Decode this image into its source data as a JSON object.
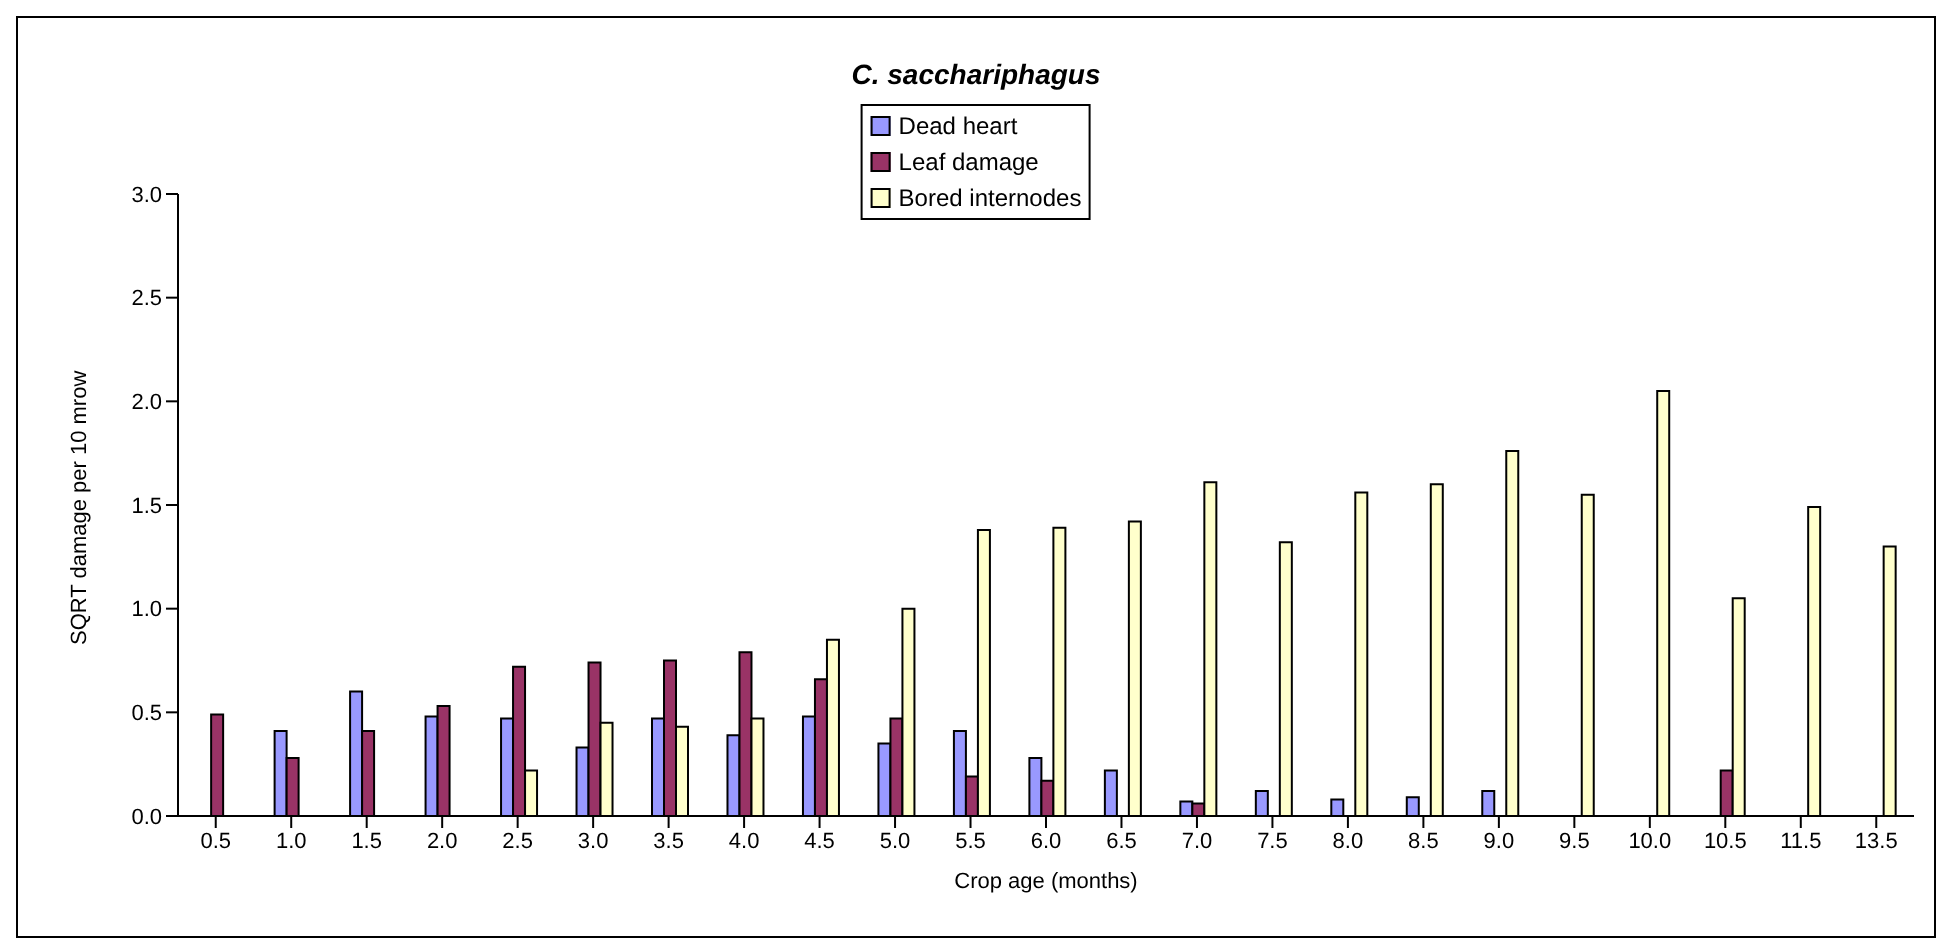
{
  "chart_data": {
    "type": "bar",
    "title": "C. sacchariphagus",
    "xlabel": "Crop age (months)",
    "ylabel": "SQRT damage per 10 mrow",
    "categories": [
      "0.5",
      "1.0",
      "1.5",
      "2.0",
      "2.5",
      "3.0",
      "3.5",
      "4.0",
      "4.5",
      "5.0",
      "5.5",
      "6.0",
      "6.5",
      "7.0",
      "7.5",
      "8.0",
      "8.5",
      "9.0",
      "9.5",
      "10.0",
      "10.5",
      "11.5",
      "13.5"
    ],
    "series": [
      {
        "name": "Dead heart",
        "color": "#9999ff",
        "values": [
          0,
          0.41,
          0.6,
          0.48,
          0.47,
          0.33,
          0.47,
          0.39,
          0.48,
          0.35,
          0.41,
          0.28,
          0.22,
          0.07,
          0.12,
          0.08,
          0.09,
          0.12,
          0,
          0,
          0,
          0,
          0
        ]
      },
      {
        "name": "Leaf damage",
        "color": "#993366",
        "values": [
          0.49,
          0.28,
          0.41,
          0.53,
          0.72,
          0.74,
          0.75,
          0.79,
          0.66,
          0.47,
          0.19,
          0.17,
          0,
          0.06,
          0,
          0,
          0,
          0,
          0,
          0,
          0.22,
          0,
          0
        ]
      },
      {
        "name": "Bored internodes",
        "color": "#ffffcc",
        "values": [
          0,
          0,
          0,
          0,
          0.22,
          0.45,
          0.43,
          0.47,
          0.85,
          1.0,
          1.38,
          1.39,
          1.42,
          1.61,
          1.32,
          1.56,
          1.6,
          1.76,
          1.55,
          2.05,
          1.05,
          1.49,
          1.3
        ]
      }
    ],
    "ylim": [
      0,
      3
    ],
    "yticks": [
      {
        "value": 0,
        "label": "0.0"
      },
      {
        "value": 0.5,
        "label": "0.5"
      },
      {
        "value": 1,
        "label": "1.0"
      },
      {
        "value": 1.5,
        "label": "1.5"
      },
      {
        "value": 2,
        "label": "2.0"
      },
      {
        "value": 2.5,
        "label": "2.5"
      },
      {
        "value": 3,
        "label": "3.0"
      }
    ],
    "grid": false,
    "legend": "top"
  }
}
